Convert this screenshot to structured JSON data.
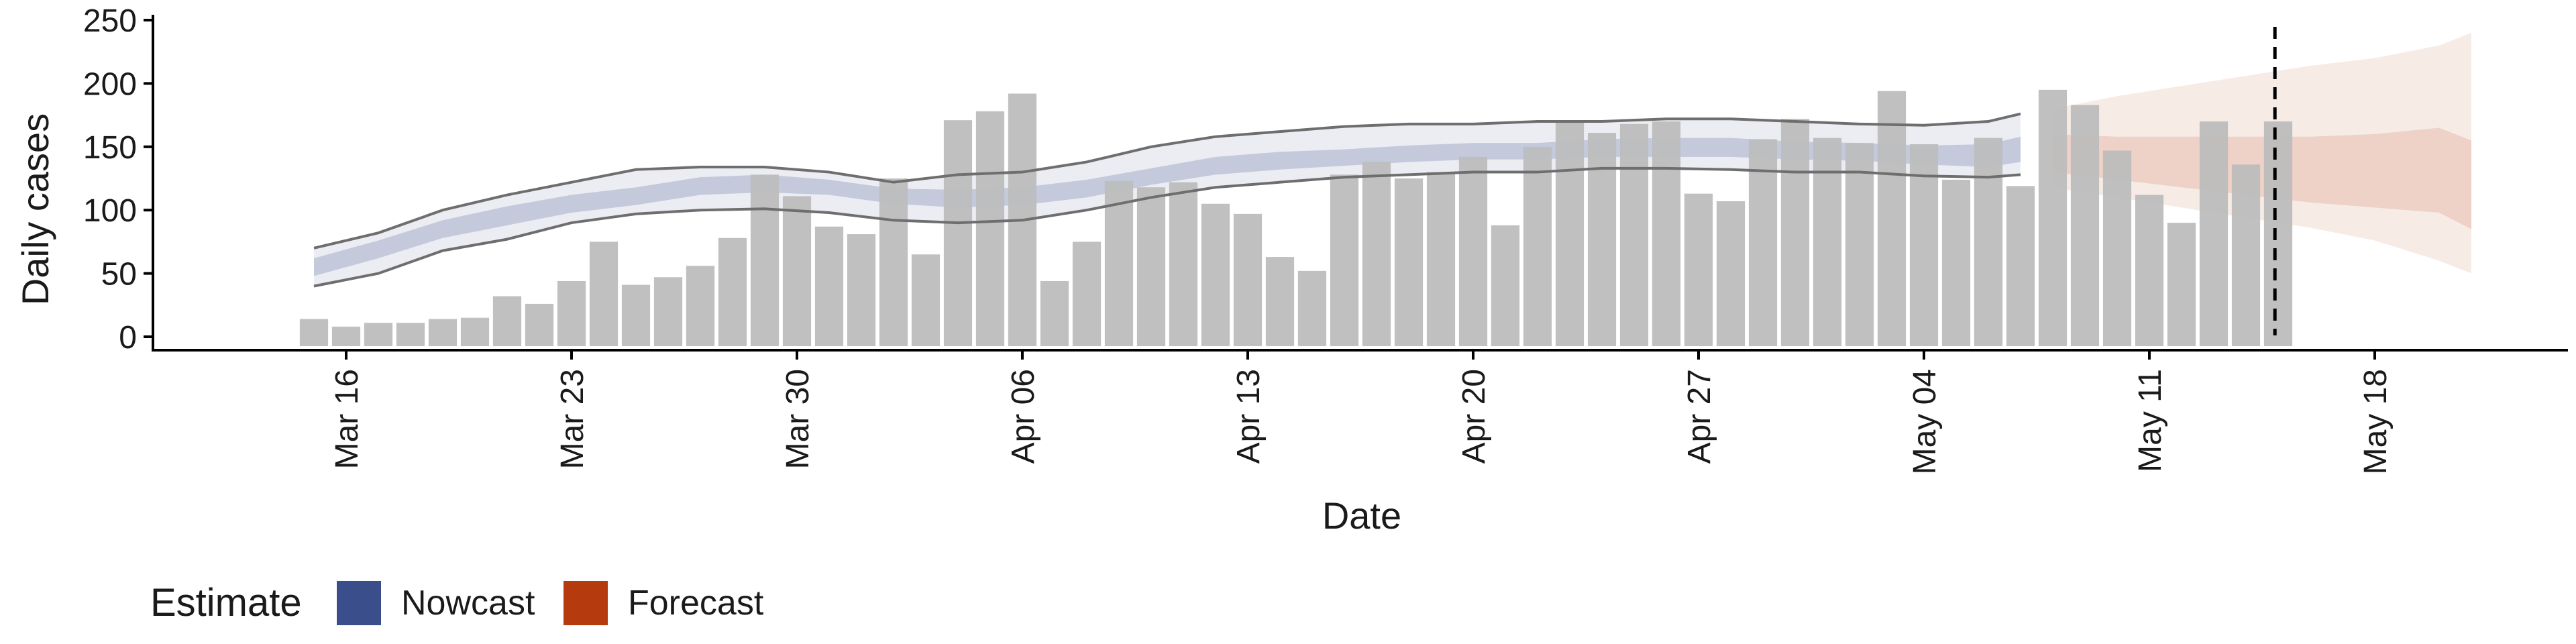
{
  "chart_data": {
    "type": "bar",
    "xlabel": "Date",
    "ylabel": "Daily cases",
    "ylim": [
      0,
      250
    ],
    "yticks": [
      0,
      50,
      100,
      150,
      200,
      250
    ],
    "xlim": [
      "2020-03-10",
      "2020-05-24"
    ],
    "xticks": [
      "2020-03-16",
      "2020-03-23",
      "2020-03-30",
      "2020-04-06",
      "2020-04-13",
      "2020-04-20",
      "2020-04-27",
      "2020-05-04",
      "2020-05-11",
      "2020-05-18"
    ],
    "xtick_labels": [
      "Mar 16",
      "Mar 23",
      "Mar 30",
      "Apr 06",
      "Apr 13",
      "Apr 20",
      "Apr 27",
      "May 04",
      "May 11",
      "May 18"
    ],
    "forecast_start_marker": "2020-05-15",
    "grid": false,
    "legend": {
      "title": "Estimate",
      "position": "bottom-left",
      "items": [
        {
          "label": "Nowcast",
          "color": "#3b4e8c"
        },
        {
          "label": "Forecast",
          "color": "#b53a0e"
        }
      ]
    },
    "reported_cases": {
      "bar_color": "#bdbdbd",
      "dates": [
        "2020-03-15",
        "2020-03-16",
        "2020-03-17",
        "2020-03-18",
        "2020-03-19",
        "2020-03-20",
        "2020-03-21",
        "2020-03-22",
        "2020-03-23",
        "2020-03-24",
        "2020-03-25",
        "2020-03-26",
        "2020-03-27",
        "2020-03-28",
        "2020-03-29",
        "2020-03-30",
        "2020-03-31",
        "2020-04-01",
        "2020-04-02",
        "2020-04-03",
        "2020-04-04",
        "2020-04-05",
        "2020-04-06",
        "2020-04-07",
        "2020-04-08",
        "2020-04-09",
        "2020-04-10",
        "2020-04-11",
        "2020-04-12",
        "2020-04-13",
        "2020-04-14",
        "2020-04-15",
        "2020-04-16",
        "2020-04-17",
        "2020-04-18",
        "2020-04-19",
        "2020-04-20",
        "2020-04-21",
        "2020-04-22",
        "2020-04-23",
        "2020-04-24",
        "2020-04-25",
        "2020-04-26",
        "2020-04-27",
        "2020-04-28",
        "2020-04-29",
        "2020-04-30",
        "2020-05-01",
        "2020-05-02",
        "2020-05-03",
        "2020-05-04",
        "2020-05-05",
        "2020-05-06",
        "2020-05-07",
        "2020-05-08",
        "2020-05-09",
        "2020-05-10",
        "2020-05-11",
        "2020-05-12",
        "2020-05-13",
        "2020-05-14",
        "2020-05-15"
      ],
      "values": [
        14,
        8,
        11,
        11,
        14,
        15,
        32,
        26,
        44,
        75,
        41,
        47,
        56,
        78,
        128,
        111,
        87,
        81,
        125,
        65,
        171,
        178,
        192,
        44,
        75,
        123,
        118,
        122,
        105,
        97,
        63,
        52,
        128,
        138,
        125,
        130,
        142,
        88,
        150,
        170,
        161,
        168,
        170,
        113,
        107,
        156,
        172,
        157,
        153,
        194,
        152,
        124,
        157,
        119,
        195,
        183,
        147,
        112,
        90,
        170,
        136,
        170
      ]
    },
    "series": [
      {
        "name": "Nowcast",
        "color": "#3b4e8c",
        "dates": [
          "2020-03-15",
          "2020-03-17",
          "2020-03-19",
          "2020-03-21",
          "2020-03-23",
          "2020-03-25",
          "2020-03-27",
          "2020-03-29",
          "2020-03-31",
          "2020-04-02",
          "2020-04-04",
          "2020-04-06",
          "2020-04-08",
          "2020-04-10",
          "2020-04-12",
          "2020-04-14",
          "2020-04-16",
          "2020-04-18",
          "2020-04-20",
          "2020-04-22",
          "2020-04-24",
          "2020-04-26",
          "2020-04-28",
          "2020-04-30",
          "2020-05-02",
          "2020-05-04",
          "2020-05-06",
          "2020-05-07"
        ],
        "lower_90": [
          40,
          50,
          68,
          77,
          90,
          97,
          100,
          101,
          98,
          92,
          90,
          92,
          100,
          110,
          118,
          122,
          126,
          128,
          130,
          130,
          133,
          133,
          132,
          130,
          130,
          127,
          126,
          128
        ],
        "lower_50": [
          48,
          62,
          78,
          88,
          98,
          104,
          112,
          114,
          112,
          105,
          102,
          104,
          110,
          120,
          128,
          132,
          135,
          138,
          140,
          140,
          142,
          142,
          142,
          140,
          139,
          136,
          134,
          138
        ],
        "median": [
          55,
          68,
          84,
          95,
          104,
          110,
          118,
          120,
          117,
          110,
          108,
          110,
          116,
          126,
          134,
          138,
          140,
          143,
          145,
          145,
          148,
          149,
          149,
          146,
          145,
          143,
          141,
          147
        ],
        "upper_50": [
          62,
          76,
          92,
          103,
          112,
          118,
          126,
          128,
          124,
          117,
          116,
          118,
          124,
          133,
          142,
          146,
          148,
          151,
          153,
          153,
          156,
          157,
          157,
          154,
          153,
          151,
          152,
          158
        ],
        "upper_90": [
          70,
          82,
          100,
          112,
          122,
          132,
          134,
          134,
          130,
          122,
          128,
          130,
          138,
          150,
          158,
          162,
          166,
          168,
          168,
          170,
          170,
          172,
          172,
          170,
          168,
          167,
          170,
          176
        ]
      },
      {
        "name": "Forecast",
        "color": "#b53a0e",
        "dates": [
          "2020-05-08",
          "2020-05-10",
          "2020-05-12",
          "2020-05-14",
          "2020-05-16",
          "2020-05-18",
          "2020-05-20",
          "2020-05-21"
        ],
        "lower_90": [
          118,
          110,
          102,
          94,
          86,
          76,
          60,
          50
        ],
        "lower_50": [
          130,
          124,
          118,
          112,
          106,
          102,
          98,
          85
        ],
        "median": [
          142,
          140,
          136,
          134,
          132,
          130,
          128,
          126
        ],
        "upper_50": [
          160,
          158,
          158,
          158,
          158,
          160,
          165,
          155
        ],
        "upper_90": [
          180,
          190,
          198,
          206,
          214,
          220,
          230,
          240
        ]
      }
    ]
  }
}
